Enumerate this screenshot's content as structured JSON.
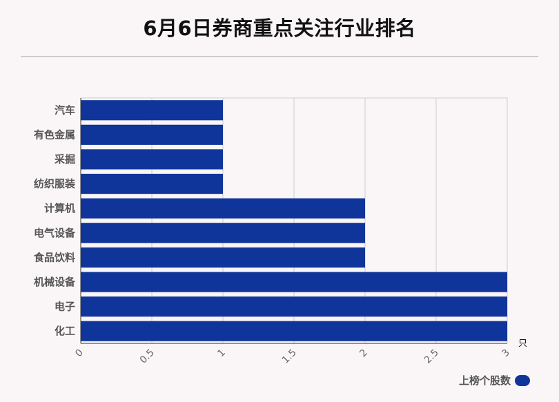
{
  "page": {
    "title": "6月6日券商重点关注行业排名"
  },
  "colors": {
    "bar": "#10359a",
    "grid": "#cccccc",
    "axis": "#333333"
  },
  "chart_data": {
    "type": "bar",
    "orientation": "horizontal",
    "title": "6月6日券商重点关注行业排名",
    "categories": [
      "汽车",
      "有色金属",
      "采掘",
      "纺织服装",
      "计算机",
      "电气设备",
      "食品饮料",
      "机械设备",
      "电子",
      "化工"
    ],
    "series": [
      {
        "name": "上榜个股数",
        "values": [
          1,
          1,
          1,
          1,
          2,
          2,
          2,
          3,
          3,
          3
        ]
      }
    ],
    "xlim": [
      0,
      3
    ],
    "xticks": [
      "0",
      "0.5",
      "1",
      "1.5",
      "2",
      "2.5",
      "3"
    ],
    "xunit": "只",
    "grid": true,
    "legend": "bottom-right"
  }
}
